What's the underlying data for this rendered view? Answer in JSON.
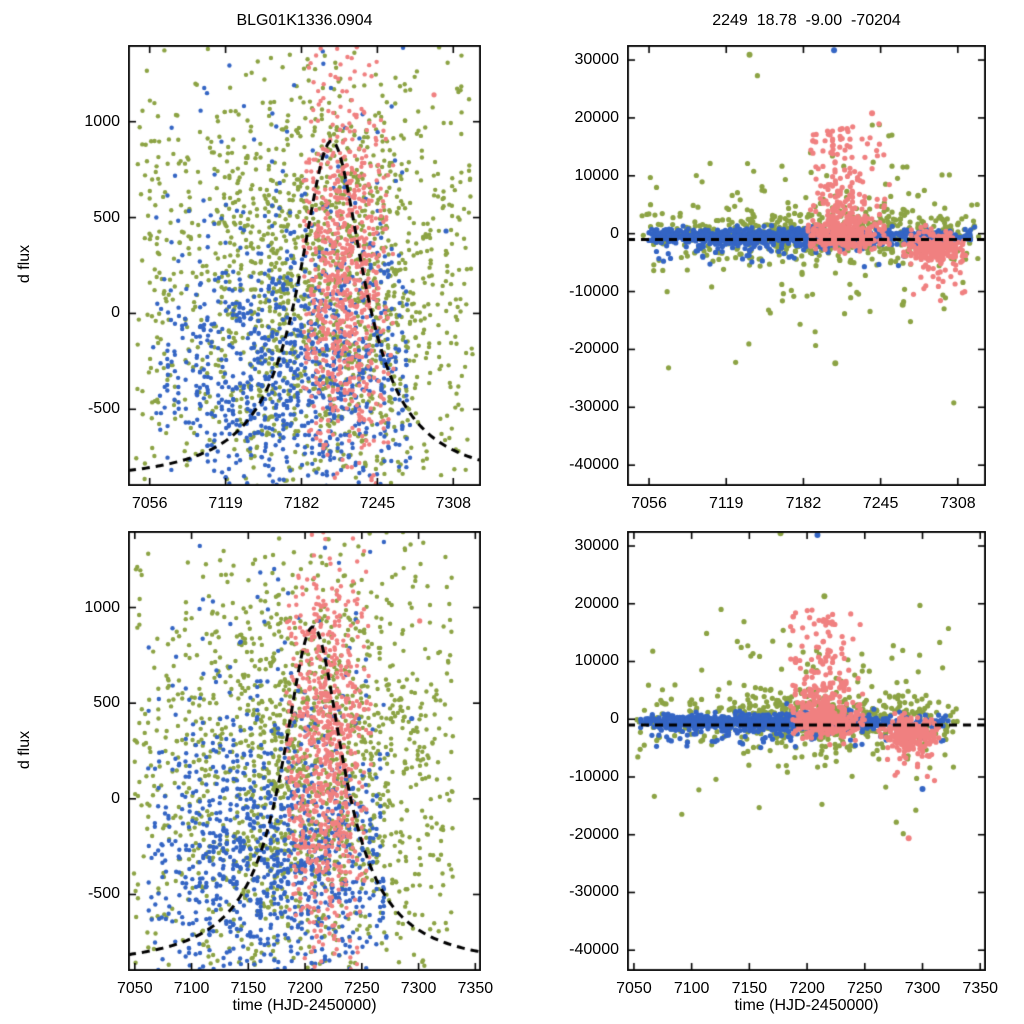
{
  "figure": {
    "background": "#ffffff",
    "palette": {
      "green": "#8ca344",
      "blue": "#3465c4",
      "salmon": "#f08080",
      "curve": "#000000",
      "frame": "#000000"
    }
  },
  "chart_data": [
    {
      "id": "top-left",
      "type": "scatter",
      "title": "BLG01K1336.0904",
      "xlabel": "",
      "ylabel": "d flux",
      "xlim": [
        7038,
        7331
      ],
      "ylim": [
        -900,
        1400
      ],
      "xticks": [
        7056,
        7119,
        7182,
        7245,
        7308
      ],
      "yticks": [
        -500,
        0,
        500,
        1000
      ],
      "grid": false,
      "legend": "none",
      "marker_radius": 2.2,
      "seed": 101,
      "series": [
        {
          "name": "site-green",
          "color": "#8ca344",
          "count": 1700,
          "x": {
            "mix": [
              {
                "w": 0.6,
                "type": "gauss",
                "mean": 7198,
                "sd": 58
              },
              {
                "w": 0.4,
                "type": "uniform",
                "min": 7046,
                "max": 7324
              }
            ],
            "clip": [
              7044,
              7328
            ],
            "quantize": 1,
            "jitter": 0.35
          },
          "y": {
            "mix": [
              {
                "w": 1,
                "type": "gauss",
                "mean": 150,
                "sd": 620
              }
            ]
          }
        },
        {
          "name": "site-blue",
          "color": "#3465c4",
          "count": 1050,
          "x": {
            "mix": [
              {
                "w": 0.8,
                "type": "gauss",
                "mean": 7178,
                "sd": 62
              },
              {
                "w": 0.2,
                "type": "uniform",
                "min": 7065,
                "max": 7270
              }
            ],
            "clip": [
              7060,
              7272
            ],
            "quantize": 3,
            "jitter": 0.5
          },
          "y": {
            "mix": [
              {
                "w": 0.9,
                "type": "gauss",
                "mean": -320,
                "sd": 360
              },
              {
                "w": 0.1,
                "type": "gauss",
                "mean": 500,
                "sd": 450
              }
            ]
          }
        },
        {
          "name": "site-salmon",
          "color": "#f08080",
          "count": 800,
          "x": {
            "mix": [
              {
                "w": 1,
                "type": "gauss",
                "mean": 7217,
                "sd": 21
              }
            ],
            "clip": [
              7184,
              7258
            ],
            "quantize": 2,
            "jitter": 0.45
          },
          "y": {
            "mix": [
              {
                "w": 0.85,
                "type": "gauss",
                "mean": 120,
                "sd": 470
              },
              {
                "w": 0.15,
                "type": "gauss",
                "mean": 700,
                "sd": 400
              }
            ]
          }
        }
      ],
      "outliers": [
        {
          "color": "#f08080",
          "x": 7292,
          "y": 1140
        },
        {
          "color": "#3465c4",
          "x": 7302,
          "y": 430
        }
      ],
      "model_curve": {
        "shape": "lorentzian",
        "baseline": -885,
        "amplitude": 1785,
        "t0": 7207,
        "width": 33,
        "style": "dashed",
        "color": "#000000"
      }
    },
    {
      "id": "top-right",
      "type": "scatter",
      "title": "2249  18.78  -9.00  -70204",
      "xlabel": "",
      "ylabel": "",
      "xlim": [
        7038,
        7331
      ],
      "ylim": [
        -43600,
        32600
      ],
      "xticks": [
        7056,
        7119,
        7182,
        7245,
        7308
      ],
      "yticks": [
        -40000,
        -30000,
        -20000,
        -10000,
        0,
        10000,
        20000,
        30000
      ],
      "grid": false,
      "legend": "none",
      "marker_radius": 2.6,
      "seed": 202,
      "series": [
        {
          "name": "site-green",
          "color": "#8ca344",
          "count": 650,
          "x": {
            "mix": [
              {
                "w": 0.55,
                "type": "gauss",
                "mean": 7210,
                "sd": 55
              },
              {
                "w": 0.45,
                "type": "uniform",
                "min": 7050,
                "max": 7325
              }
            ],
            "clip": [
              7048,
              7326
            ]
          },
          "y": {
            "mix": [
              {
                "w": 0.75,
                "type": "gauss",
                "mean": 0,
                "sd": 2200
              },
              {
                "w": 0.25,
                "type": "gauss",
                "mean": 500,
                "sd": 8000
              }
            ]
          }
        },
        {
          "name": "site-blue",
          "color": "#3465c4",
          "count": 950,
          "x": {
            "mix": [
              {
                "w": 0.75,
                "type": "gauss",
                "mean": 7155,
                "sd": 70
              },
              {
                "w": 0.25,
                "type": "uniform",
                "min": 7058,
                "max": 7320
              }
            ],
            "clip": [
              7056,
              7322
            ],
            "quantize": 2,
            "jitter": 0.5
          },
          "y": {
            "mix": [
              {
                "w": 0.85,
                "type": "gauss",
                "mean": -450,
                "sd": 650
              },
              {
                "w": 0.15,
                "type": "gauss",
                "mean": -1800,
                "sd": 1400
              }
            ]
          }
        },
        {
          "name": "site-salmon-peak",
          "color": "#f08080",
          "count": 480,
          "x": {
            "mix": [
              {
                "w": 1,
                "type": "gauss",
                "mean": 7214,
                "sd": 16
              }
            ],
            "clip": [
              7186,
              7252
            ],
            "quantize": 2,
            "jitter": 0.4
          },
          "y": {
            "mix": [
              {
                "w": 0.5,
                "type": "gauss",
                "mean": -400,
                "sd": 1200
              },
              {
                "w": 0.25,
                "type": "gauss",
                "mean": 2500,
                "sd": 2500
              },
              {
                "w": 0.25,
                "type": "uniform",
                "min": 500,
                "max": 19000
              }
            ]
          }
        },
        {
          "name": "site-salmon-late",
          "color": "#f08080",
          "count": 260,
          "x": {
            "mix": [
              {
                "w": 1,
                "type": "gauss",
                "mean": 7290,
                "sd": 13
              }
            ],
            "clip": [
              7262,
              7315
            ],
            "quantize": 2,
            "jitter": 0.4
          },
          "y": {
            "mix": [
              {
                "w": 0.85,
                "type": "gauss",
                "mean": -2400,
                "sd": 1300
              },
              {
                "w": 0.15,
                "type": "gauss",
                "mean": -6000,
                "sd": 2500
              }
            ]
          }
        }
      ],
      "outliers": [
        {
          "color": "#3465c4",
          "x": 7207,
          "y": 31700
        },
        {
          "color": "#8ca344",
          "x": 7138,
          "y": 30900
        },
        {
          "color": "#8ca344",
          "x": 7208,
          "y": -22400
        },
        {
          "color": "#8ca344",
          "x": 7263,
          "y": -12300
        },
        {
          "color": "#f08080",
          "x": 7238,
          "y": 20800
        }
      ],
      "model_curve": {
        "shape": "flat",
        "baseline": -1000,
        "style": "dashed",
        "color": "#000000"
      }
    },
    {
      "id": "bottom-left",
      "type": "scatter",
      "title": "",
      "xlabel": "time (HJD-2450000)",
      "ylabel": "d flux",
      "xlim": [
        7044,
        7355
      ],
      "ylim": [
        -900,
        1400
      ],
      "xticks": [
        7050,
        7100,
        7150,
        7200,
        7250,
        7300,
        7350
      ],
      "yticks": [
        -500,
        0,
        500,
        1000
      ],
      "grid": false,
      "legend": "none",
      "marker_radius": 2.2,
      "seed": 303,
      "series": [
        {
          "name": "site-green",
          "color": "#8ca344",
          "count": 1700,
          "x": {
            "mix": [
              {
                "w": 0.6,
                "type": "gauss",
                "mean": 7198,
                "sd": 58
              },
              {
                "w": 0.4,
                "type": "uniform",
                "min": 7050,
                "max": 7330
              }
            ],
            "clip": [
              7048,
              7332
            ],
            "quantize": 1,
            "jitter": 0.35
          },
          "y": {
            "mix": [
              {
                "w": 1,
                "type": "gauss",
                "mean": 150,
                "sd": 620
              }
            ]
          }
        },
        {
          "name": "site-blue",
          "color": "#3465c4",
          "count": 1050,
          "x": {
            "mix": [
              {
                "w": 0.8,
                "type": "gauss",
                "mean": 7178,
                "sd": 62
              },
              {
                "w": 0.2,
                "type": "uniform",
                "min": 7065,
                "max": 7270
              }
            ],
            "clip": [
              7060,
              7272
            ],
            "quantize": 3,
            "jitter": 0.5
          },
          "y": {
            "mix": [
              {
                "w": 0.9,
                "type": "gauss",
                "mean": -320,
                "sd": 360
              },
              {
                "w": 0.1,
                "type": "gauss",
                "mean": 500,
                "sd": 450
              }
            ]
          }
        },
        {
          "name": "site-salmon",
          "color": "#f08080",
          "count": 800,
          "x": {
            "mix": [
              {
                "w": 1,
                "type": "gauss",
                "mean": 7217,
                "sd": 21
              }
            ],
            "clip": [
              7184,
              7258
            ],
            "quantize": 2,
            "jitter": 0.45
          },
          "y": {
            "mix": [
              {
                "w": 0.85,
                "type": "gauss",
                "mean": 120,
                "sd": 470
              },
              {
                "w": 0.15,
                "type": "gauss",
                "mean": 700,
                "sd": 400
              }
            ]
          }
        }
      ],
      "outliers": [
        {
          "color": "#f08080",
          "x": 7301,
          "y": 930
        },
        {
          "color": "#3465c4",
          "x": 7294,
          "y": 420
        }
      ],
      "model_curve": {
        "shape": "lorentzian",
        "baseline": -885,
        "amplitude": 1785,
        "t0": 7207,
        "width": 33,
        "style": "dashed",
        "color": "#000000"
      }
    },
    {
      "id": "bottom-right",
      "type": "scatter",
      "title": "",
      "xlabel": "time (HJD-2450000)",
      "ylabel": "",
      "xlim": [
        7044,
        7355
      ],
      "ylim": [
        -43600,
        32600
      ],
      "xticks": [
        7050,
        7100,
        7150,
        7200,
        7250,
        7300,
        7350
      ],
      "yticks": [
        -40000,
        -30000,
        -20000,
        -10000,
        0,
        10000,
        20000,
        30000
      ],
      "grid": false,
      "legend": "none",
      "marker_radius": 2.6,
      "seed": 404,
      "series": [
        {
          "name": "site-green",
          "color": "#8ca344",
          "count": 650,
          "x": {
            "mix": [
              {
                "w": 0.55,
                "type": "gauss",
                "mean": 7210,
                "sd": 55
              },
              {
                "w": 0.45,
                "type": "uniform",
                "min": 7052,
                "max": 7330
              }
            ],
            "clip": [
              7050,
              7332
            ]
          },
          "y": {
            "mix": [
              {
                "w": 0.75,
                "type": "gauss",
                "mean": 0,
                "sd": 2200
              },
              {
                "w": 0.25,
                "type": "gauss",
                "mean": 500,
                "sd": 8000
              }
            ]
          }
        },
        {
          "name": "site-blue",
          "color": "#3465c4",
          "count": 950,
          "x": {
            "mix": [
              {
                "w": 0.75,
                "type": "gauss",
                "mean": 7155,
                "sd": 70
              },
              {
                "w": 0.25,
                "type": "uniform",
                "min": 7058,
                "max": 7320
              }
            ],
            "clip": [
              7056,
              7322
            ],
            "quantize": 2,
            "jitter": 0.5
          },
          "y": {
            "mix": [
              {
                "w": 0.85,
                "type": "gauss",
                "mean": -450,
                "sd": 650
              },
              {
                "w": 0.15,
                "type": "gauss",
                "mean": -1800,
                "sd": 1400
              }
            ]
          }
        },
        {
          "name": "site-salmon-peak",
          "color": "#f08080",
          "count": 480,
          "x": {
            "mix": [
              {
                "w": 1,
                "type": "gauss",
                "mean": 7214,
                "sd": 16
              }
            ],
            "clip": [
              7186,
              7252
            ],
            "quantize": 2,
            "jitter": 0.4
          },
          "y": {
            "mix": [
              {
                "w": 0.5,
                "type": "gauss",
                "mean": -400,
                "sd": 1200
              },
              {
                "w": 0.25,
                "type": "gauss",
                "mean": 2500,
                "sd": 2500
              },
              {
                "w": 0.25,
                "type": "uniform",
                "min": 500,
                "max": 19000
              }
            ]
          }
        },
        {
          "name": "site-salmon-late",
          "color": "#f08080",
          "count": 260,
          "x": {
            "mix": [
              {
                "w": 1,
                "type": "gauss",
                "mean": 7290,
                "sd": 13
              }
            ],
            "clip": [
              7262,
              7315
            ],
            "quantize": 2,
            "jitter": 0.4
          },
          "y": {
            "mix": [
              {
                "w": 0.85,
                "type": "gauss",
                "mean": -2400,
                "sd": 1300
              },
              {
                "w": 0.15,
                "type": "gauss",
                "mean": -6000,
                "sd": 2500
              }
            ]
          }
        }
      ],
      "outliers": [
        {
          "color": "#3465c4",
          "x": 7209,
          "y": 31900
        },
        {
          "color": "#8ca344",
          "x": 7177,
          "y": 32200
        },
        {
          "color": "#8ca344",
          "x": 7215,
          "y": 21300
        },
        {
          "color": "#f08080",
          "x": 7288,
          "y": -20600
        },
        {
          "color": "#3465c4",
          "x": 7300,
          "y": -12100
        }
      ],
      "model_curve": {
        "shape": "flat",
        "baseline": -1000,
        "style": "dashed",
        "color": "#000000"
      }
    }
  ]
}
